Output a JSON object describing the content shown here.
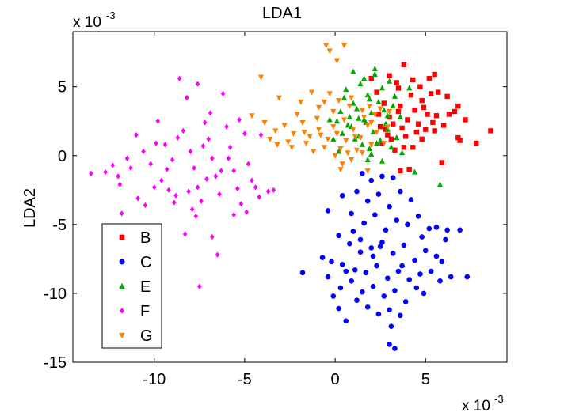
{
  "chart_data": {
    "type": "scatter",
    "title": "LDA1",
    "xlabel": "",
    "ylabel": "LDA2",
    "x_multiplier_label": "x 10",
    "x_multiplier_exp": "-3",
    "y_multiplier_label": "x 10",
    "y_multiplier_exp": "-3",
    "xlim": [
      -14.5,
      9.5
    ],
    "ylim": [
      -15,
      9
    ],
    "xticks": [
      -10,
      -5,
      0,
      5
    ],
    "xtick_labels": [
      "-10",
      "-5",
      "0",
      "5"
    ],
    "yticks": [
      -15,
      -10,
      -5,
      0,
      5
    ],
    "ytick_labels": [
      "-15",
      "-10",
      "-5",
      "0",
      "5"
    ],
    "grid": false,
    "legend_position": "bottom-left",
    "series": [
      {
        "name": "B",
        "color": "#ff0000",
        "marker": "square",
        "points": [
          [
            3.0,
            5.8
          ],
          [
            3.4,
            5.3
          ],
          [
            3.8,
            6.6
          ],
          [
            4.3,
            5.5
          ],
          [
            4.8,
            4.0
          ],
          [
            5.2,
            5.6
          ],
          [
            5.5,
            5.9
          ],
          [
            4.2,
            4.4
          ],
          [
            3.6,
            3.6
          ],
          [
            5.7,
            4.6
          ],
          [
            6.2,
            4.3
          ],
          [
            6.6,
            3.2
          ],
          [
            6.8,
            3.6
          ],
          [
            7.2,
            2.6
          ],
          [
            8.6,
            1.8
          ],
          [
            7.8,
            0.9
          ],
          [
            6.8,
            1.3
          ],
          [
            6.0,
            2.2
          ],
          [
            5.5,
            1.8
          ],
          [
            4.8,
            1.2
          ],
          [
            4.3,
            0.6
          ],
          [
            3.8,
            0.6
          ],
          [
            3.3,
            0.4
          ],
          [
            2.9,
            1.5
          ],
          [
            2.5,
            2.1
          ],
          [
            3.0,
            2.8
          ],
          [
            3.5,
            3.2
          ],
          [
            4.0,
            2.6
          ],
          [
            4.6,
            2.3
          ],
          [
            5.1,
            3.0
          ],
          [
            5.6,
            2.9
          ],
          [
            5.0,
            1.9
          ],
          [
            4.5,
            1.7
          ],
          [
            3.9,
            1.4
          ],
          [
            3.1,
            1.2
          ],
          [
            4.1,
            -1.0
          ],
          [
            3.6,
            -1.1
          ],
          [
            5.9,
            -0.5
          ],
          [
            2.7,
            3.8
          ],
          [
            2.3,
            4.6
          ],
          [
            2.0,
            5.6
          ],
          [
            2.4,
            3.0
          ],
          [
            4.4,
            3.3
          ],
          [
            5.4,
            2.4
          ],
          [
            6.3,
            3.0
          ],
          [
            3.2,
            2.3
          ],
          [
            2.8,
            1.9
          ],
          [
            6.9,
            1.1
          ],
          [
            5.3,
            4.5
          ],
          [
            4.7,
            5.0
          ],
          [
            3.5,
            4.9
          ],
          [
            2.6,
            0.9
          ],
          [
            4.9,
            3.5
          ],
          [
            3.7,
            2.0
          ]
        ]
      },
      {
        "name": "C",
        "color": "#0000ff",
        "marker": "circle",
        "points": [
          [
            1.5,
            -1.3
          ],
          [
            2.0,
            -1.8
          ],
          [
            2.6,
            -1.5
          ],
          [
            3.2,
            -1.6
          ],
          [
            1.2,
            -2.6
          ],
          [
            1.8,
            -3.3
          ],
          [
            2.4,
            -2.8
          ],
          [
            3.0,
            -3.7
          ],
          [
            3.6,
            -2.6
          ],
          [
            4.2,
            -3.2
          ],
          [
            0.4,
            -2.9
          ],
          [
            -0.4,
            -4.0
          ],
          [
            0.9,
            -4.2
          ],
          [
            1.6,
            -4.9
          ],
          [
            2.2,
            -4.3
          ],
          [
            2.8,
            -5.4
          ],
          [
            3.4,
            -4.7
          ],
          [
            4.0,
            -5.0
          ],
          [
            4.6,
            -4.4
          ],
          [
            5.2,
            -5.3
          ],
          [
            5.6,
            -5.2
          ],
          [
            6.2,
            -5.4
          ],
          [
            0.2,
            -5.8
          ],
          [
            0.8,
            -6.4
          ],
          [
            1.4,
            -6.1
          ],
          [
            2.0,
            -6.7
          ],
          [
            2.6,
            -6.3
          ],
          [
            3.2,
            -7.1
          ],
          [
            3.8,
            -6.5
          ],
          [
            4.4,
            -7.6
          ],
          [
            5.0,
            -6.9
          ],
          [
            5.6,
            -7.3
          ],
          [
            6.1,
            -6.1
          ],
          [
            6.9,
            -5.4
          ],
          [
            -0.7,
            -7.4
          ],
          [
            -0.2,
            -7.7
          ],
          [
            0.4,
            -7.9
          ],
          [
            1.1,
            -8.3
          ],
          [
            1.7,
            -8.5
          ],
          [
            2.3,
            -8.0
          ],
          [
            2.9,
            -8.9
          ],
          [
            3.5,
            -8.4
          ],
          [
            4.1,
            -9.0
          ],
          [
            4.7,
            -8.6
          ],
          [
            5.3,
            -8.4
          ],
          [
            5.9,
            -7.7
          ],
          [
            6.4,
            -8.8
          ],
          [
            7.3,
            -8.8
          ],
          [
            -1.8,
            -8.5
          ],
          [
            -0.4,
            -8.8
          ],
          [
            0.3,
            -9.6
          ],
          [
            0.9,
            -9.1
          ],
          [
            1.5,
            -9.9
          ],
          [
            2.1,
            -9.5
          ],
          [
            2.7,
            -10.2
          ],
          [
            3.3,
            -9.8
          ],
          [
            3.9,
            -10.6
          ],
          [
            4.5,
            -9.6
          ],
          [
            1.2,
            -10.5
          ],
          [
            1.8,
            -11.0
          ],
          [
            2.4,
            -11.5
          ],
          [
            3.0,
            -11.2
          ],
          [
            0.2,
            -11.1
          ],
          [
            0.6,
            -12.0
          ],
          [
            3.1,
            -12.4
          ],
          [
            3.0,
            -13.7
          ],
          [
            3.3,
            -14.0
          ],
          [
            3.6,
            -11.6
          ],
          [
            2.1,
            -7.3
          ],
          [
            1.4,
            -7.0
          ],
          [
            4.8,
            -5.9
          ],
          [
            3.7,
            -8.0
          ],
          [
            2.5,
            -6.6
          ],
          [
            1.0,
            -5.5
          ],
          [
            5.8,
            -9.1
          ],
          [
            4.9,
            -10.0
          ],
          [
            0.6,
            -8.4
          ],
          [
            -0.1,
            -10.2
          ]
        ]
      },
      {
        "name": "E",
        "color": "#00aa00",
        "marker": "triangle",
        "points": [
          [
            0.6,
            4.8
          ],
          [
            1.0,
            3.8
          ],
          [
            1.4,
            5.2
          ],
          [
            1.8,
            4.4
          ],
          [
            2.2,
            5.9
          ],
          [
            2.6,
            4.9
          ],
          [
            3.0,
            5.4
          ],
          [
            0.8,
            2.8
          ],
          [
            1.2,
            3.4
          ],
          [
            1.6,
            2.6
          ],
          [
            2.0,
            3.1
          ],
          [
            2.4,
            3.9
          ],
          [
            2.8,
            2.3
          ],
          [
            3.2,
            3.6
          ],
          [
            0.4,
            1.6
          ],
          [
            0.9,
            2.1
          ],
          [
            1.3,
            1.4
          ],
          [
            1.7,
            2.4
          ],
          [
            2.1,
            1.7
          ],
          [
            2.5,
            1.1
          ],
          [
            2.9,
            1.9
          ],
          [
            3.4,
            1.3
          ],
          [
            0.3,
            3.2
          ],
          [
            0.7,
            2.2
          ],
          [
            1.1,
            1.2
          ],
          [
            1.5,
            0.8
          ],
          [
            1.9,
            0.5
          ],
          [
            2.3,
            0.9
          ],
          [
            3.1,
            0.6
          ],
          [
            -0.3,
            2.6
          ],
          [
            -0.1,
            1.2
          ],
          [
            0.2,
            0.3
          ],
          [
            1.8,
            -0.3
          ],
          [
            2.6,
            -0.4
          ],
          [
            4.4,
            -1.2
          ],
          [
            5.8,
            -2.1
          ],
          [
            1.0,
            6.1
          ],
          [
            2.2,
            6.3
          ],
          [
            1.6,
            5.6
          ],
          [
            3.3,
            4.3
          ],
          [
            2.7,
            3.3
          ],
          [
            3.6,
            2.8
          ],
          [
            4.1,
            4.9
          ],
          [
            0.5,
            4.2
          ],
          [
            1.9,
            4.1
          ],
          [
            2.9,
            2.9
          ],
          [
            1.3,
            2.7
          ],
          [
            0.1,
            2.5
          ],
          [
            2.0,
            0.1
          ],
          [
            3.7,
            0.2
          ]
        ]
      },
      {
        "name": "F",
        "color": "#ff00ff",
        "marker": "diamond",
        "points": [
          [
            -13.5,
            -1.3
          ],
          [
            -12.7,
            -1.2
          ],
          [
            -12.0,
            -1.5
          ],
          [
            -11.5,
            -0.2
          ],
          [
            -11.9,
            -2.1
          ],
          [
            -11.8,
            -4.2
          ],
          [
            -11.0,
            1.5
          ],
          [
            -10.6,
            0.3
          ],
          [
            -10.2,
            -0.6
          ],
          [
            -10.9,
            -3.1
          ],
          [
            -10.5,
            -3.6
          ],
          [
            -9.8,
            2.5
          ],
          [
            -9.4,
            0.8
          ],
          [
            -9.0,
            -0.3
          ],
          [
            -9.6,
            -1.8
          ],
          [
            -9.2,
            -2.5
          ],
          [
            -8.8,
            -2.9
          ],
          [
            -8.6,
            5.6
          ],
          [
            -8.2,
            4.2
          ],
          [
            -8.4,
            1.8
          ],
          [
            -8.0,
            0.3
          ],
          [
            -7.8,
            -0.9
          ],
          [
            -7.6,
            -2.3
          ],
          [
            -7.4,
            -3.3
          ],
          [
            -7.9,
            -3.9
          ],
          [
            -7.2,
            2.4
          ],
          [
            -7.0,
            1.2
          ],
          [
            -6.8,
            -0.2
          ],
          [
            -6.6,
            -1.5
          ],
          [
            -6.4,
            -2.8
          ],
          [
            -6.2,
            4.5
          ],
          [
            -6.0,
            2.1
          ],
          [
            -5.8,
            0.6
          ],
          [
            -5.6,
            -1.1
          ],
          [
            -5.4,
            -2.4
          ],
          [
            -5.2,
            -3.5
          ],
          [
            -5.0,
            1.6
          ],
          [
            -4.8,
            -0.6
          ],
          [
            -4.6,
            -1.8
          ],
          [
            -4.4,
            -2.3
          ],
          [
            -4.2,
            -3.0
          ],
          [
            -3.7,
            -2.6
          ],
          [
            -3.4,
            -2.5
          ],
          [
            -5.6,
            -4.3
          ],
          [
            -6.8,
            -5.9
          ],
          [
            -7.5,
            -9.5
          ],
          [
            -8.3,
            -5.7
          ],
          [
            -7.7,
            -4.4
          ],
          [
            -9.3,
            -1.0
          ],
          [
            -10.0,
            -2.3
          ],
          [
            -6.3,
            -1.1
          ],
          [
            -8.7,
            1.3
          ],
          [
            -7.3,
            0.7
          ],
          [
            -5.9,
            -0.2
          ],
          [
            -6.9,
            3.1
          ],
          [
            -9.9,
            0.9
          ],
          [
            -11.3,
            -0.9
          ],
          [
            -8.1,
            -2.6
          ],
          [
            -6.5,
            -7.2
          ],
          [
            -5.3,
            2.6
          ],
          [
            -4.1,
            1.5
          ],
          [
            -4.9,
            -4.1
          ],
          [
            -7.1,
            -1.7
          ],
          [
            -8.9,
            -3.4
          ],
          [
            -12.3,
            -0.7
          ],
          [
            -7.6,
            5.2
          ]
        ]
      },
      {
        "name": "G",
        "color": "#ff8000",
        "marker": "triangle-down",
        "points": [
          [
            -0.5,
            8.0
          ],
          [
            -0.3,
            7.6
          ],
          [
            0.1,
            6.9
          ],
          [
            0.5,
            8.0
          ],
          [
            -4.1,
            5.7
          ],
          [
            -3.1,
            4.2
          ],
          [
            -1.9,
            3.9
          ],
          [
            -0.9,
            3.5
          ],
          [
            -0.1,
            3.2
          ],
          [
            0.8,
            3.6
          ],
          [
            1.5,
            3.3
          ],
          [
            2.2,
            3.0
          ],
          [
            3.0,
            3.2
          ],
          [
            -4.6,
            2.9
          ],
          [
            -3.9,
            2.4
          ],
          [
            -3.3,
            1.8
          ],
          [
            -2.8,
            2.2
          ],
          [
            -2.3,
            1.6
          ],
          [
            -1.8,
            2.4
          ],
          [
            -1.4,
            1.4
          ],
          [
            -0.9,
            1.9
          ],
          [
            -0.4,
            1.2
          ],
          [
            0.1,
            1.6
          ],
          [
            0.6,
            1.1
          ],
          [
            1.0,
            1.9
          ],
          [
            1.4,
            1.3
          ],
          [
            1.8,
            2.2
          ],
          [
            2.3,
            1.7
          ],
          [
            -3.6,
            1.2
          ],
          [
            -2.6,
            1.0
          ],
          [
            -1.6,
            0.9
          ],
          [
            -0.6,
            0.6
          ],
          [
            0.3,
            0.5
          ],
          [
            1.2,
            0.4
          ],
          [
            2.0,
            0.8
          ],
          [
            2.7,
            0.9
          ],
          [
            -1.2,
            0.3
          ],
          [
            0.0,
            0.0
          ],
          [
            0.9,
            -0.3
          ],
          [
            1.8,
            -1.1
          ],
          [
            0.3,
            -1.0
          ],
          [
            2.5,
            3.4
          ],
          [
            -0.3,
            4.5
          ],
          [
            0.2,
            4.0
          ],
          [
            0.9,
            4.2
          ],
          [
            -2.1,
            3.0
          ],
          [
            -1.0,
            2.7
          ],
          [
            1.6,
            2.8
          ],
          [
            -3.2,
            0.8
          ],
          [
            -2.4,
            0.6
          ],
          [
            -0.8,
            1.5
          ],
          [
            0.5,
            2.6
          ],
          [
            2.0,
            2.4
          ],
          [
            1.1,
            1.4
          ],
          [
            -0.1,
            2.1
          ],
          [
            -1.7,
            1.7
          ],
          [
            0.7,
            0.2
          ],
          [
            1.5,
            0.2
          ],
          [
            2.9,
            2.1
          ],
          [
            0.4,
            -0.6
          ],
          [
            1.9,
            3.6
          ],
          [
            -0.6,
            3.9
          ],
          [
            -1.3,
            4.6
          ]
        ]
      }
    ]
  }
}
